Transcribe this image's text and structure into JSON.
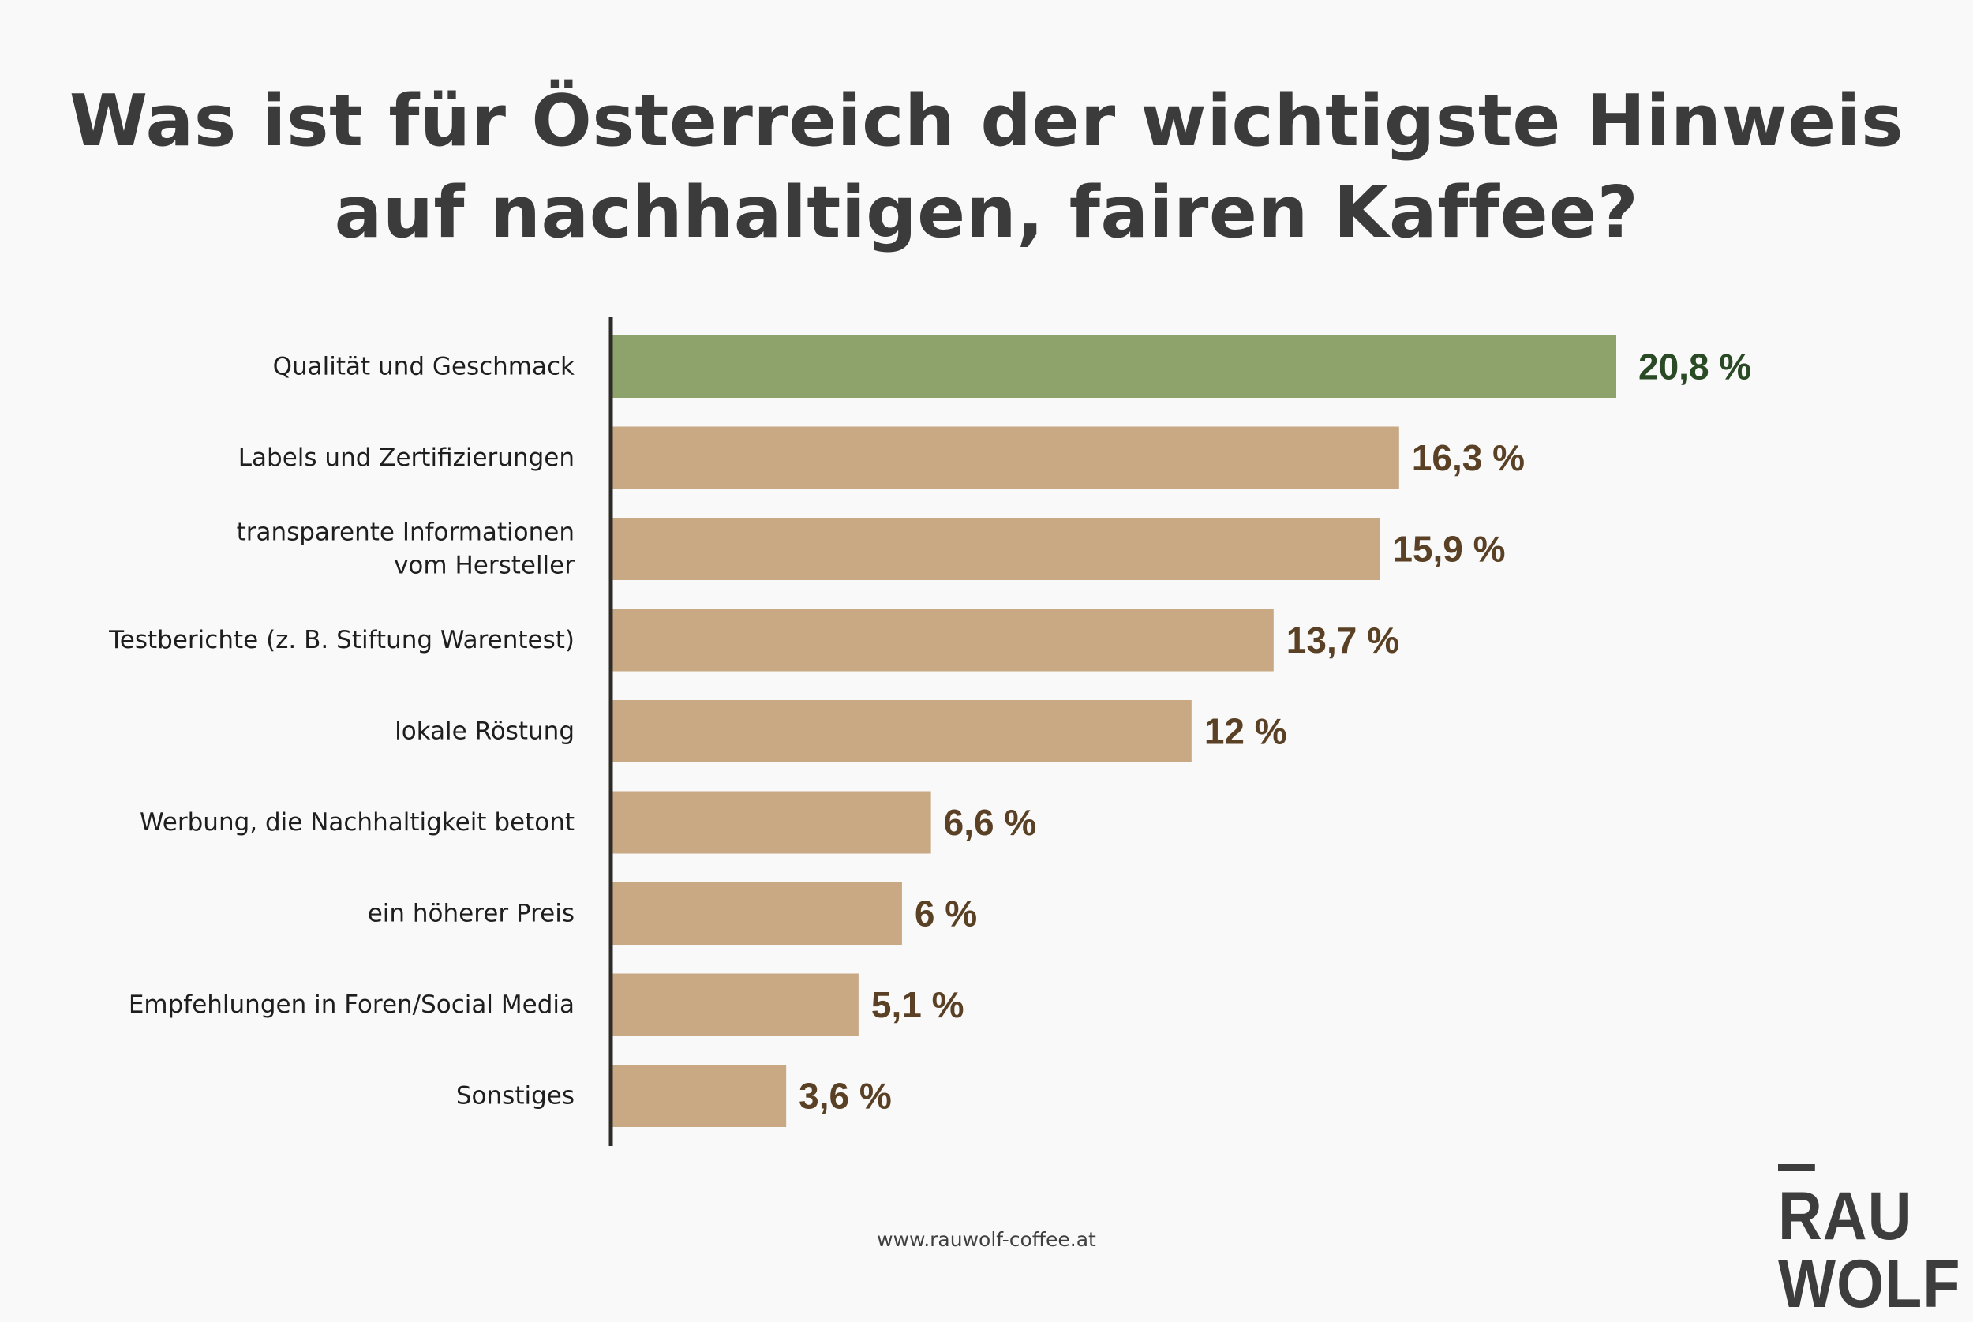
{
  "title": {
    "line1": "Was ist für Österreich der wichtigste Hinweis",
    "line2": "auf nachhaltigen, fairen Kaffee?"
  },
  "colors": {
    "highlight_bar": "#8ea26c",
    "highlight_text": "#294a24",
    "bar": "#c8a984",
    "value_text": "#5a4125",
    "axis": "#2e2a26"
  },
  "chart_data": {
    "type": "bar",
    "orientation": "horizontal",
    "categories": [
      [
        "Qualität und Geschmack"
      ],
      [
        "Labels und Zertifizierungen"
      ],
      [
        "transparente Informationen",
        "vom Hersteller"
      ],
      [
        "Testberichte (z. B. Stiftung Warentest)"
      ],
      [
        "lokale Röstung"
      ],
      [
        "Werbung, die Nachhaltigkeit betont"
      ],
      [
        "ein höherer Preis"
      ],
      [
        "Empfehlungen in Foren/Social Media"
      ],
      [
        "Sonstiges"
      ]
    ],
    "values": [
      20.8,
      16.3,
      15.9,
      13.7,
      12,
      6.6,
      6,
      5.1,
      3.6
    ],
    "value_labels": [
      "20,8 %",
      "16,3 %",
      "15,9 %",
      "13,7 %",
      "12 %",
      "6,6 %",
      "6 %",
      "5,1 %",
      "3,6 %"
    ],
    "highlight_index": 0,
    "xlim": [
      0,
      20.8
    ],
    "grid": false,
    "legend": "none"
  },
  "footer": {
    "url": "www.rauwolf-coffee.at"
  },
  "logo": {
    "line1": "RAU",
    "line2": "WOLF"
  }
}
